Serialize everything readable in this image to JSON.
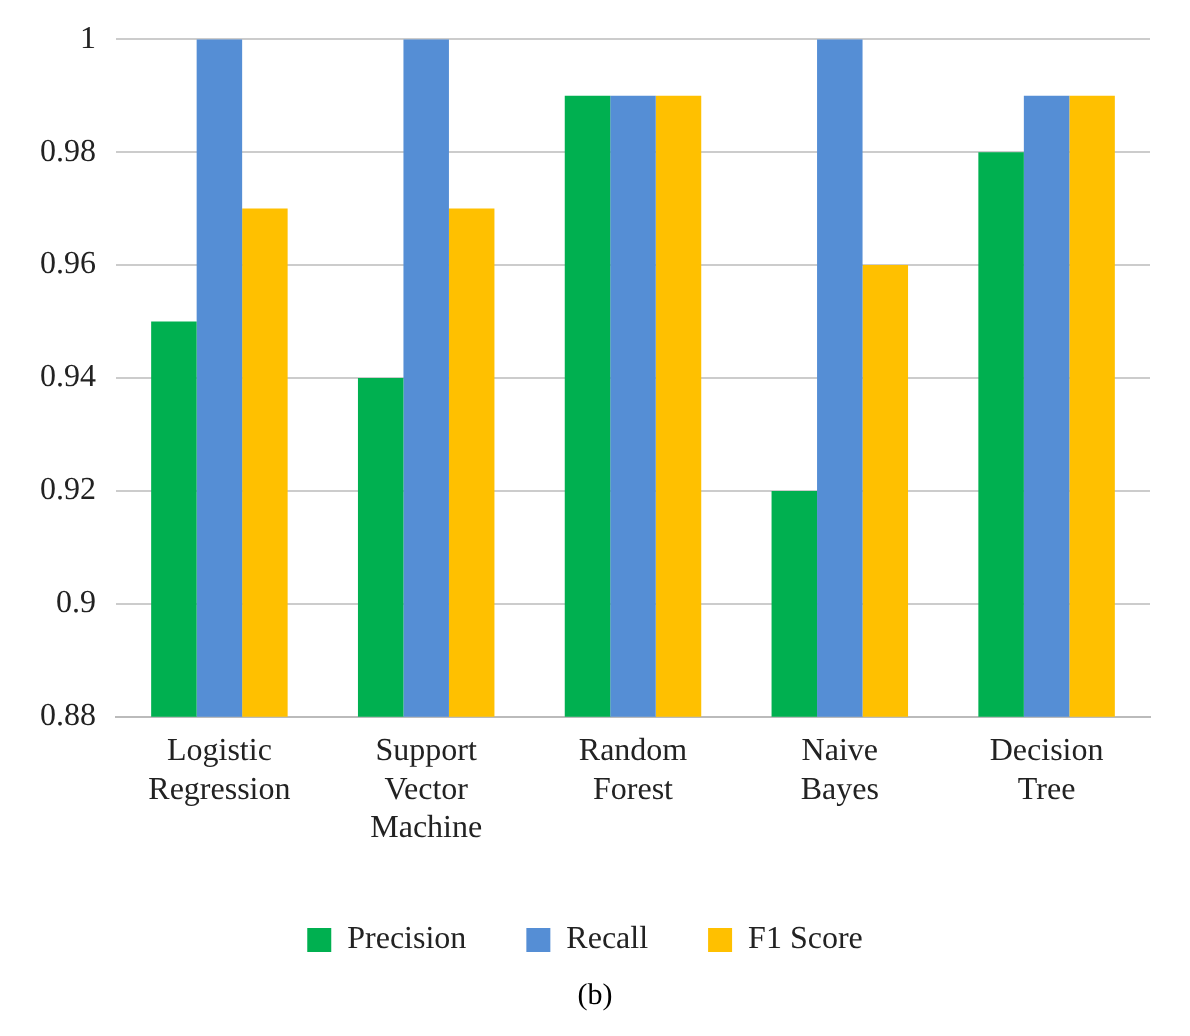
{
  "chart_data": {
    "type": "bar",
    "categories": [
      "Logistic Regression",
      "Support Vector Machine",
      "Random Forest",
      "Naive Bayes",
      "Decision Tree"
    ],
    "series": [
      {
        "name": "Precision",
        "color": "#00b050",
        "values": [
          0.95,
          0.94,
          0.99,
          0.92,
          0.98
        ]
      },
      {
        "name": "Recall",
        "color": "#558ed5",
        "values": [
          1,
          1,
          0.99,
          1,
          0.99
        ]
      },
      {
        "name": "F1 Score",
        "color": "#ffc000",
        "values": [
          0.97,
          0.97,
          0.99,
          0.96,
          0.99
        ]
      }
    ],
    "ylim": [
      0.88,
      1
    ],
    "yticks": [
      0.88,
      0.9,
      0.92,
      0.94,
      0.96,
      0.98,
      1
    ],
    "grid": "y",
    "legend": "bottom",
    "annotations": [
      "(b)"
    ]
  }
}
